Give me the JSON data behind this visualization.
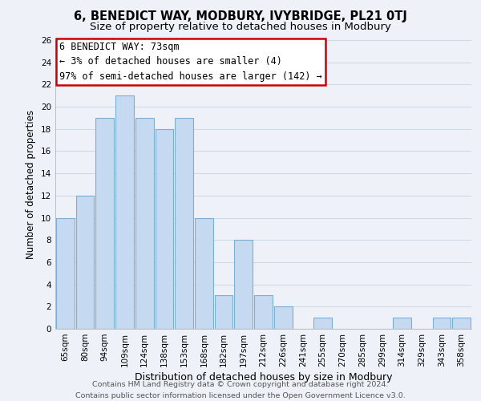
{
  "title": "6, BENEDICT WAY, MODBURY, IVYBRIDGE, PL21 0TJ",
  "subtitle": "Size of property relative to detached houses in Modbury",
  "xlabel": "Distribution of detached houses by size in Modbury",
  "ylabel": "Number of detached properties",
  "categories": [
    "65sqm",
    "80sqm",
    "94sqm",
    "109sqm",
    "124sqm",
    "138sqm",
    "153sqm",
    "168sqm",
    "182sqm",
    "197sqm",
    "212sqm",
    "226sqm",
    "241sqm",
    "255sqm",
    "270sqm",
    "285sqm",
    "299sqm",
    "314sqm",
    "329sqm",
    "343sqm",
    "358sqm"
  ],
  "values": [
    10,
    12,
    19,
    21,
    19,
    18,
    19,
    10,
    3,
    8,
    3,
    2,
    0,
    1,
    0,
    0,
    0,
    1,
    0,
    1,
    1
  ],
  "bar_color": "#c5d9f1",
  "bar_edge_color": "#7bafd4",
  "annotation_box": {
    "text_line1": "6 BENEDICT WAY: 73sqm",
    "text_line2": "← 3% of detached houses are smaller (4)",
    "text_line3": "97% of semi-detached houses are larger (142) →",
    "box_color": "white",
    "edge_color": "#cc0000",
    "fontsize": 8.5
  },
  "ylim": [
    0,
    26
  ],
  "yticks": [
    0,
    2,
    4,
    6,
    8,
    10,
    12,
    14,
    16,
    18,
    20,
    22,
    24,
    26
  ],
  "grid_color": "#d0d8e8",
  "background_color": "#eef2f8",
  "footer_line1": "Contains HM Land Registry data © Crown copyright and database right 2024.",
  "footer_line2": "Contains public sector information licensed under the Open Government Licence v3.0.",
  "title_fontsize": 10.5,
  "subtitle_fontsize": 9.5,
  "xlabel_fontsize": 9,
  "ylabel_fontsize": 8.5,
  "tick_fontsize": 7.5,
  "footer_fontsize": 6.8
}
